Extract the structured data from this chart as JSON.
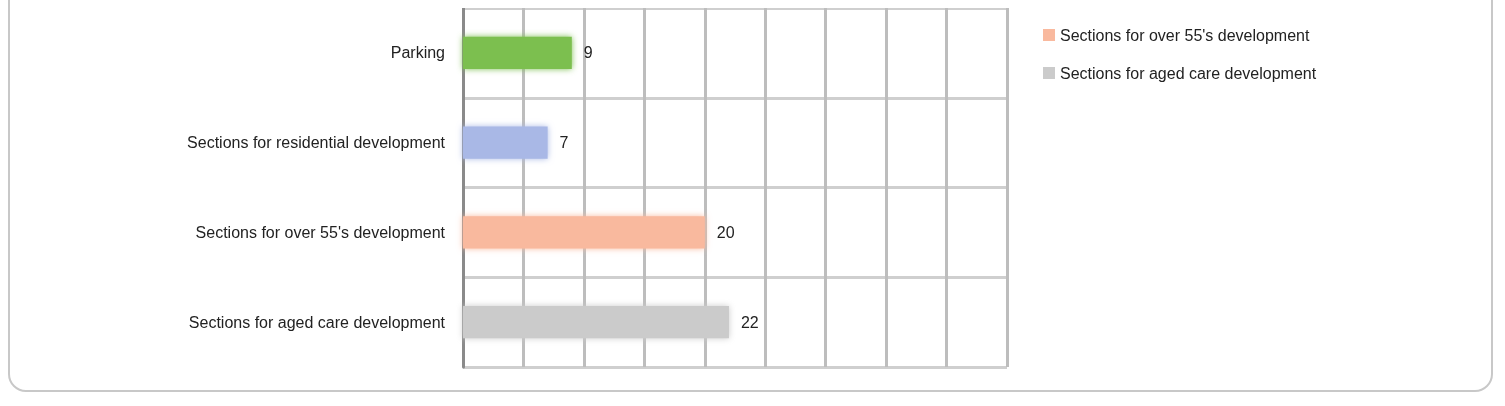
{
  "chart_data": {
    "type": "bar",
    "orientation": "horizontal",
    "stacked": true,
    "categories": [
      "Parking",
      "Sections for residential development",
      "Sections for over 55's development",
      "Sections for aged care development"
    ],
    "series": [
      {
        "color": "#7cbf4f",
        "values": [
          9,
          null,
          null,
          null
        ]
      },
      {
        "color": "#a9b8e6",
        "values": [
          null,
          7,
          null,
          null
        ]
      },
      {
        "name": "Sections for over 55's development",
        "color": "#f9b99e",
        "values": [
          null,
          null,
          20,
          null
        ]
      },
      {
        "name": "Sections for aged care development",
        "color": "#cbcbcb",
        "values": [
          null,
          null,
          null,
          22
        ]
      }
    ],
    "xlim": [
      0,
      45
    ],
    "xticks": [
      {
        "value": 0,
        "label": null
      },
      {
        "value": 5,
        "label": null
      },
      {
        "value": 10,
        "label": null
      },
      {
        "value": 15,
        "label": null
      },
      {
        "value": 20,
        "label": null
      },
      {
        "value": 25,
        "label": null
      },
      {
        "value": 30,
        "label": null
      },
      {
        "value": 35,
        "label": null
      },
      {
        "value": 40,
        "label": null
      },
      {
        "value": 45,
        "label": null
      }
    ],
    "tick_labels": "y",
    "grid": true,
    "data_labels": true,
    "legend": "top right"
  }
}
